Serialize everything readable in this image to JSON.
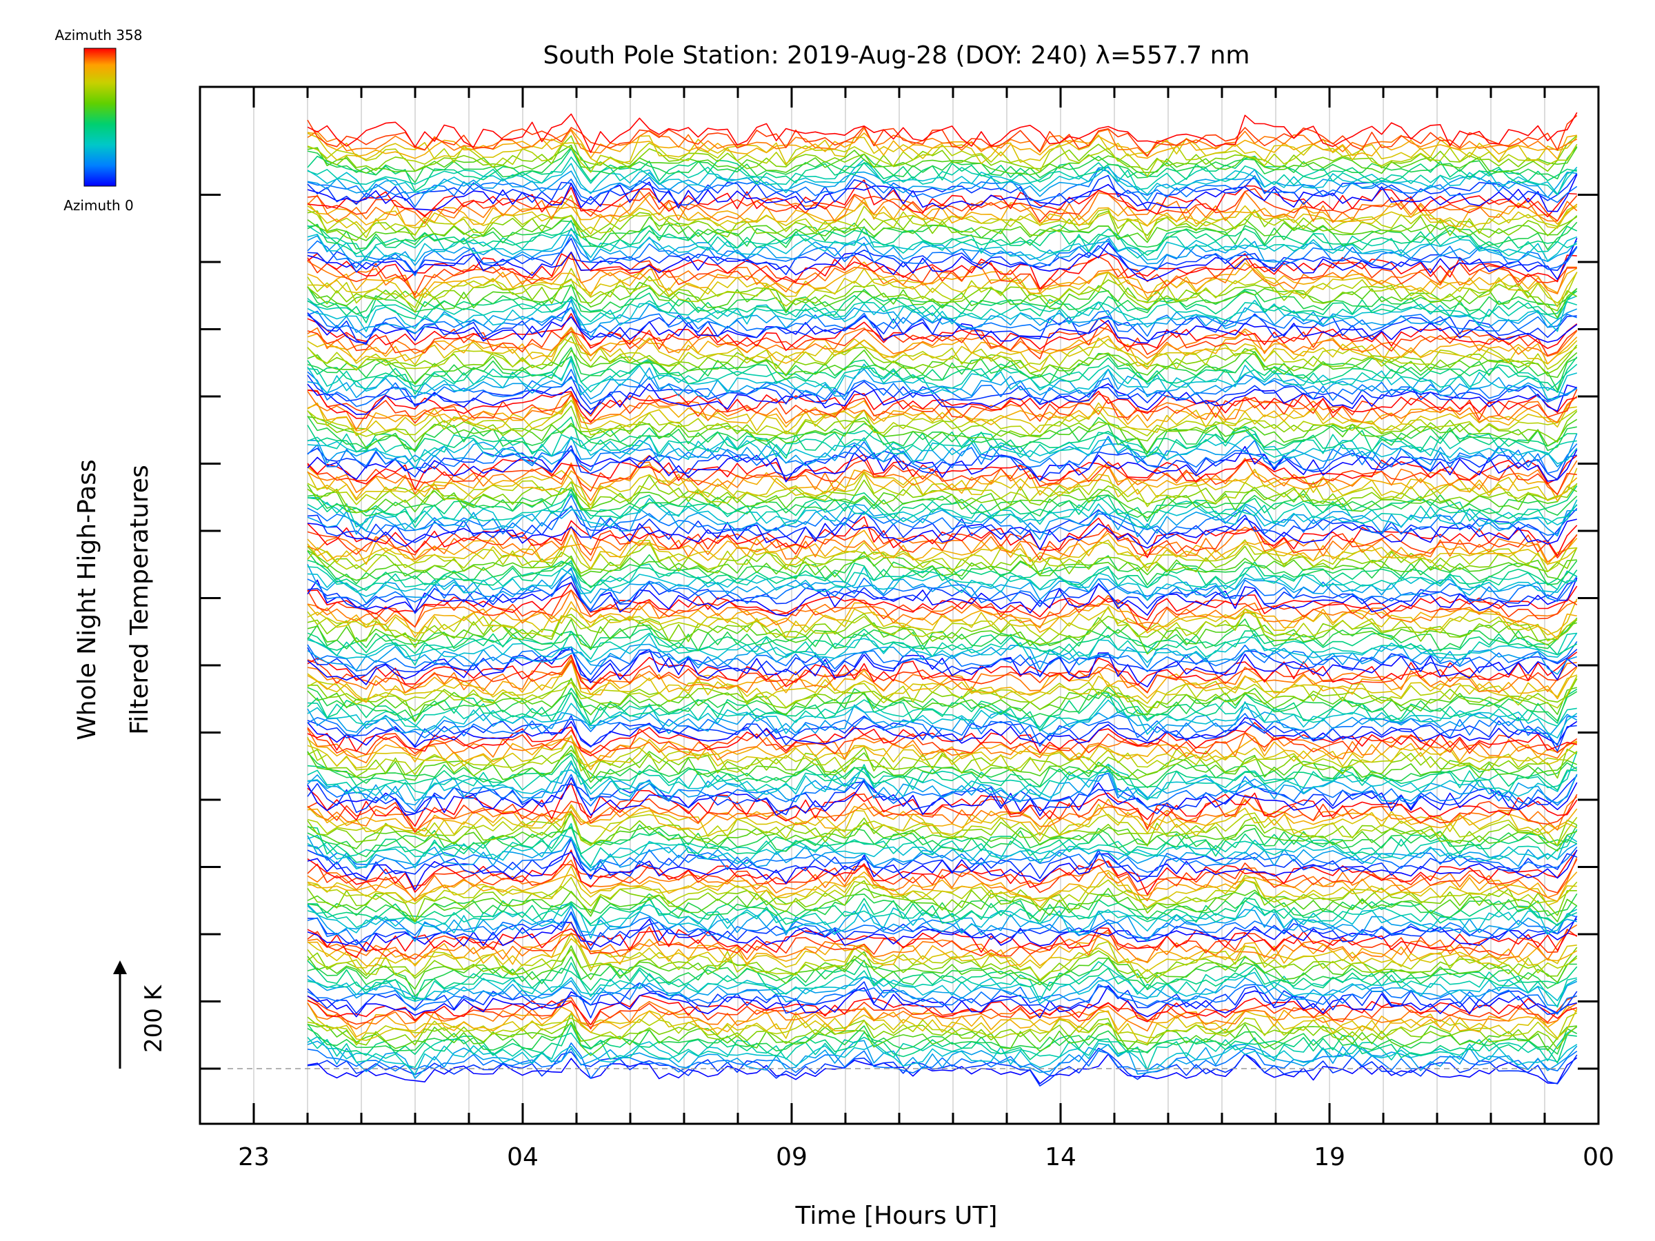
{
  "chart_data": {
    "type": "line",
    "title": "South Pole Station: 2019-Aug-28 (DOY: 240) λ=557.7 nm",
    "xlabel": "Time [Hours UT]",
    "ylabel_lines": [
      "Whole Night High-Pass",
      "Filtered Temperatures"
    ],
    "scale_label": "200 K",
    "x_ticklabels": [
      "23",
      "04",
      "09",
      "14",
      "19",
      "00"
    ],
    "x_range_hours": [
      22,
      48
    ],
    "data_start_hour": 24,
    "data_end_hour": 47.6,
    "colorbar": {
      "top_label": "Azimuth 358",
      "bottom_label": "Azimuth 0",
      "stops": [
        "#0000ff",
        "#0080ff",
        "#00c8c8",
        "#00d070",
        "#60d000",
        "#c8d000",
        "#ffa000",
        "#ff0000"
      ]
    },
    "azimuth_cycle": [
      0,
      20,
      45,
      70,
      95,
      120,
      145,
      170,
      195,
      220,
      245,
      270,
      295,
      320,
      340,
      358
    ],
    "panels": 14,
    "traces_per_panel": 16,
    "grid": "vertical lines every hour",
    "notes_visible": "stacked high-pass filtered temperature traces colored by azimuth"
  }
}
